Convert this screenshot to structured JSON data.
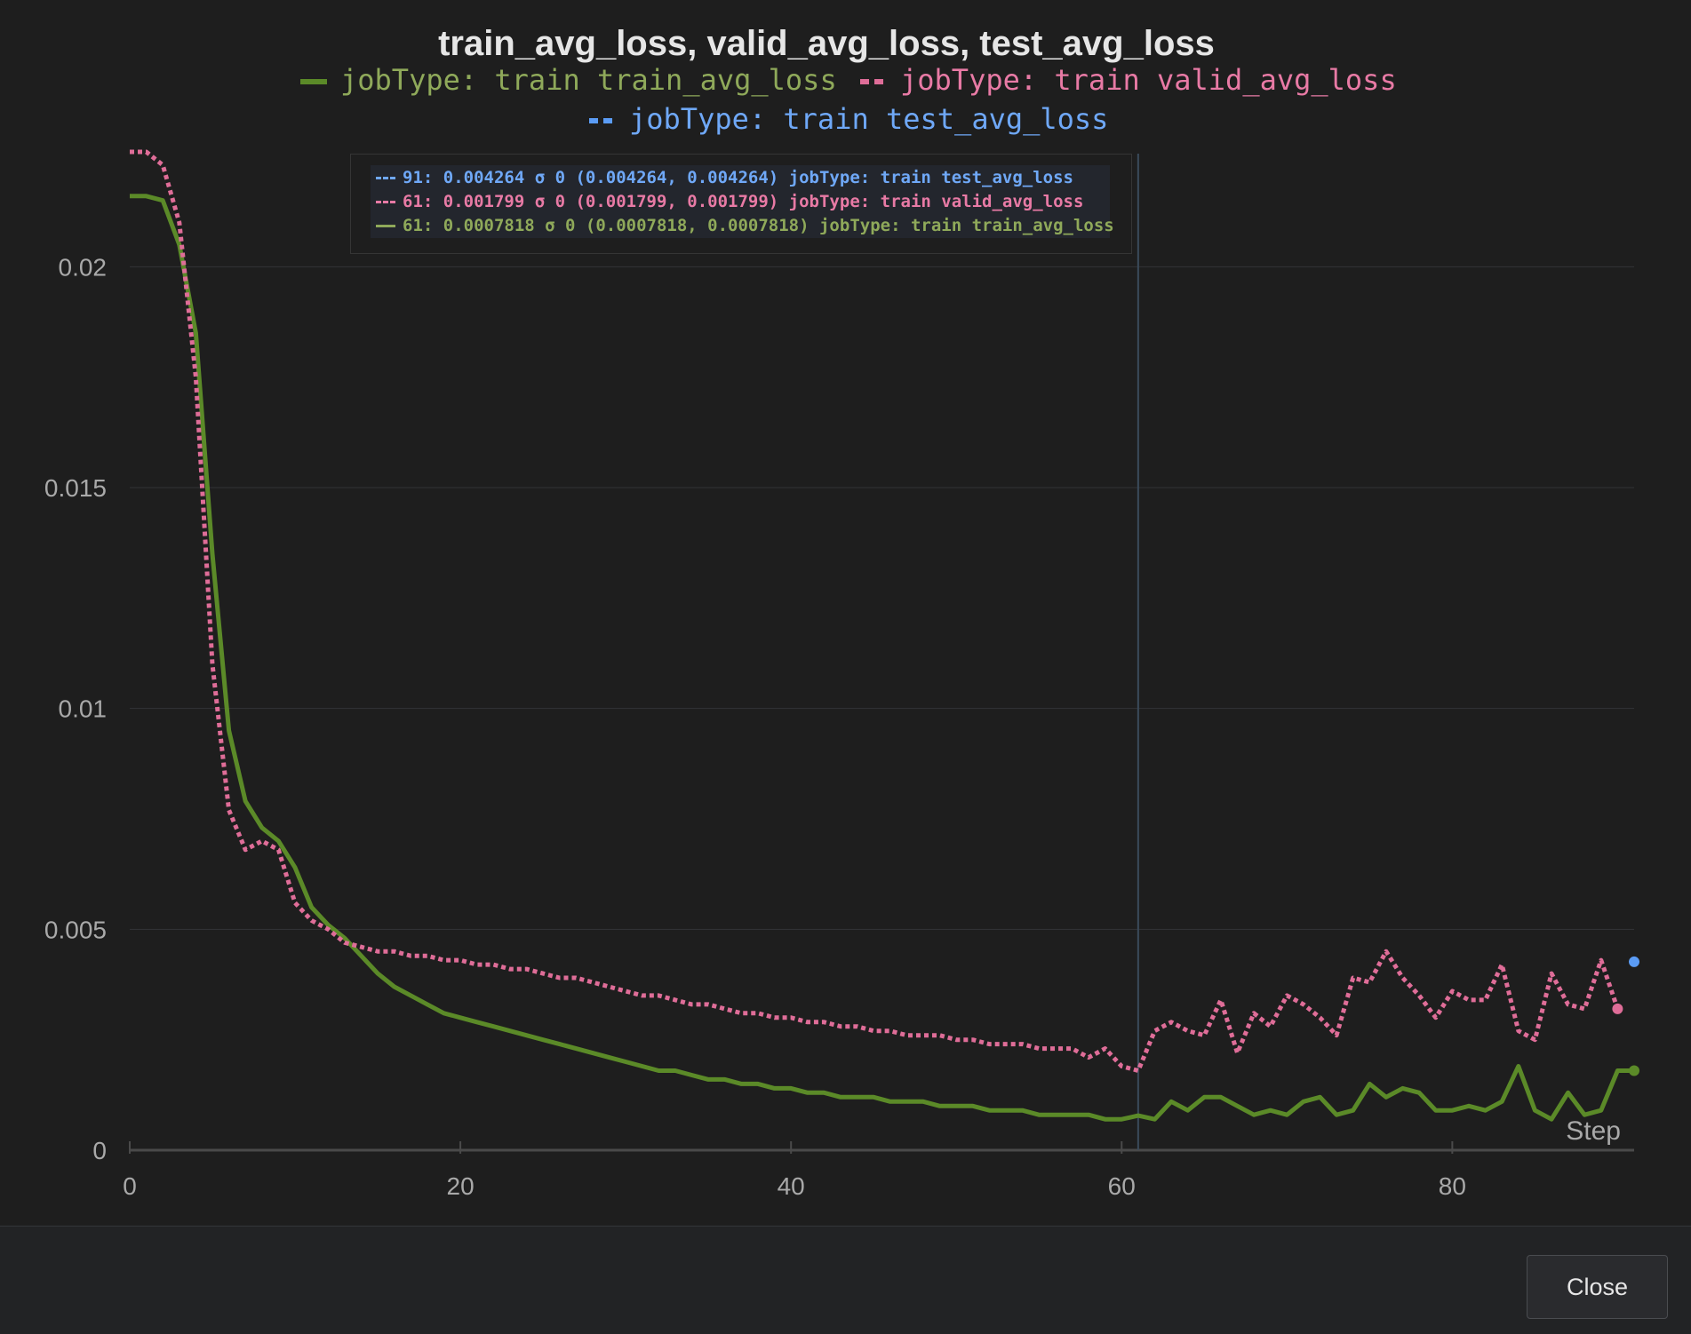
{
  "chart_data": {
    "type": "line",
    "title": "train_avg_loss, valid_avg_loss, test_avg_loss",
    "xlabel": "Step",
    "ylabel": "",
    "xlim": [
      0,
      91
    ],
    "ylim": [
      0,
      0.0225
    ],
    "x_ticks": [
      "0",
      "20",
      "40",
      "60",
      "80"
    ],
    "x_tick_values": [
      0,
      20,
      40,
      60,
      80
    ],
    "y_ticks": [
      "0",
      "0.005",
      "0.01",
      "0.015",
      "0.02"
    ],
    "y_tick_values": [
      0,
      0.005,
      0.01,
      0.015,
      0.02
    ],
    "grid": true,
    "legend_position": "top-center",
    "hover_step": 61,
    "series": [
      {
        "name": "jobType: train train_avg_loss",
        "color": "#5b8a28",
        "legend_color": "#8fa95a",
        "dash": "solid",
        "x": [
          0,
          1,
          2,
          3,
          4,
          5,
          6,
          7,
          8,
          9,
          10,
          11,
          12,
          13,
          14,
          15,
          16,
          17,
          18,
          19,
          20,
          21,
          22,
          23,
          24,
          25,
          26,
          27,
          28,
          29,
          30,
          31,
          32,
          33,
          34,
          35,
          36,
          37,
          38,
          39,
          40,
          41,
          42,
          43,
          44,
          45,
          46,
          47,
          48,
          49,
          50,
          51,
          52,
          53,
          54,
          55,
          56,
          57,
          58,
          59,
          60,
          61,
          62,
          63,
          64,
          65,
          66,
          67,
          68,
          69,
          70,
          71,
          72,
          73,
          74,
          75,
          76,
          77,
          78,
          79,
          80,
          81,
          82,
          83,
          84,
          85,
          86,
          87,
          88,
          89,
          90,
          91
        ],
        "y": [
          0.0216,
          0.0216,
          0.0215,
          0.0205,
          0.0185,
          0.0135,
          0.0095,
          0.0079,
          0.0073,
          0.007,
          0.0064,
          0.0055,
          0.0051,
          0.0048,
          0.0044,
          0.004,
          0.0037,
          0.0035,
          0.0033,
          0.0031,
          0.003,
          0.0029,
          0.0028,
          0.0027,
          0.0026,
          0.0025,
          0.0024,
          0.0023,
          0.0022,
          0.0021,
          0.002,
          0.0019,
          0.0018,
          0.0018,
          0.0017,
          0.0016,
          0.0016,
          0.0015,
          0.0015,
          0.0014,
          0.0014,
          0.0013,
          0.0013,
          0.0012,
          0.0012,
          0.0012,
          0.0011,
          0.0011,
          0.0011,
          0.001,
          0.001,
          0.001,
          0.0009,
          0.0009,
          0.0009,
          0.0008,
          0.0008,
          0.0008,
          0.0008,
          0.0007,
          0.0007,
          0.0007818,
          0.0007,
          0.0011,
          0.0009,
          0.0012,
          0.0012,
          0.001,
          0.0008,
          0.0009,
          0.0008,
          0.0011,
          0.0012,
          0.0008,
          0.0009,
          0.0015,
          0.0012,
          0.0014,
          0.0013,
          0.0009,
          0.0009,
          0.001,
          0.0009,
          0.0011,
          0.0019,
          0.0009,
          0.0007,
          0.0013,
          0.0008,
          0.0009,
          0.0018,
          0.0018
        ],
        "endpoint_dot": true
      },
      {
        "name": "jobType: train valid_avg_loss",
        "color": "#df6d98",
        "legend_color": "#e87aa5",
        "dash": "dotted",
        "x": [
          0,
          1,
          2,
          3,
          4,
          5,
          6,
          7,
          8,
          9,
          10,
          11,
          12,
          13,
          14,
          15,
          16,
          17,
          18,
          19,
          20,
          21,
          22,
          23,
          24,
          25,
          26,
          27,
          28,
          29,
          30,
          31,
          32,
          33,
          34,
          35,
          36,
          37,
          38,
          39,
          40,
          41,
          42,
          43,
          44,
          45,
          46,
          47,
          48,
          49,
          50,
          51,
          52,
          53,
          54,
          55,
          56,
          57,
          58,
          59,
          60,
          61,
          62,
          63,
          64,
          65,
          66,
          67,
          68,
          69,
          70,
          71,
          72,
          73,
          74,
          75,
          76,
          77,
          78,
          79,
          80,
          81,
          82,
          83,
          84,
          85,
          86,
          87,
          88,
          89,
          90
        ],
        "y": [
          0.0226,
          0.0226,
          0.0223,
          0.021,
          0.0175,
          0.011,
          0.0077,
          0.0068,
          0.007,
          0.0068,
          0.0056,
          0.0052,
          0.005,
          0.0047,
          0.0046,
          0.0045,
          0.0045,
          0.0044,
          0.0044,
          0.0043,
          0.0043,
          0.0042,
          0.0042,
          0.0041,
          0.0041,
          0.004,
          0.0039,
          0.0039,
          0.0038,
          0.0037,
          0.0036,
          0.0035,
          0.0035,
          0.0034,
          0.0033,
          0.0033,
          0.0032,
          0.0031,
          0.0031,
          0.003,
          0.003,
          0.0029,
          0.0029,
          0.0028,
          0.0028,
          0.0027,
          0.0027,
          0.0026,
          0.0026,
          0.0026,
          0.0025,
          0.0025,
          0.0024,
          0.0024,
          0.0024,
          0.0023,
          0.0023,
          0.0023,
          0.0021,
          0.0023,
          0.0019,
          0.001799,
          0.0027,
          0.0029,
          0.0027,
          0.0026,
          0.0034,
          0.0022,
          0.0031,
          0.0028,
          0.0035,
          0.0033,
          0.003,
          0.0026,
          0.0039,
          0.0038,
          0.0045,
          0.0039,
          0.0035,
          0.003,
          0.0036,
          0.0034,
          0.0034,
          0.0042,
          0.0027,
          0.0025,
          0.004,
          0.0033,
          0.0032,
          0.0043,
          0.0032
        ],
        "endpoint_dot": true
      },
      {
        "name": "jobType: train test_avg_loss",
        "color": "#5b9cf5",
        "legend_color": "#6fa8f7",
        "dash": "dashed",
        "x": [
          91
        ],
        "y": [
          0.004264
        ],
        "endpoint_dot": true
      }
    ],
    "tooltip": [
      {
        "text": "91: 0.004264 σ 0 (0.004264, 0.004264) jobType: train test_avg_loss",
        "color": "#6fa8f7"
      },
      {
        "text": "61: 0.001799 σ 0 (0.001799, 0.001799) jobType: train valid_avg_loss",
        "color": "#e87aa5"
      },
      {
        "text": "61: 0.0007818 σ 0 (0.0007818, 0.0007818) jobType: train train_avg_loss",
        "color": "#8fa95a"
      }
    ]
  },
  "footer": {
    "close_label": "Close"
  }
}
